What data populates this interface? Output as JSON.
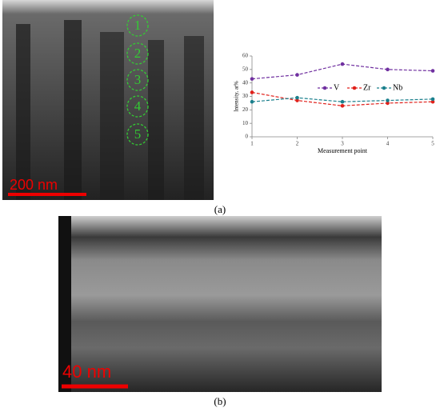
{
  "panel_a": {
    "markers": [
      "1",
      "2",
      "3",
      "4",
      "5"
    ],
    "scale_bar": "200 nm",
    "caption": "(a)"
  },
  "panel_b": {
    "scale_bar": "40 nm",
    "caption": "(b)"
  },
  "chart_data": {
    "type": "line",
    "x_label": "Measurement point",
    "y_label": "Intensity, at%",
    "x": [
      1,
      2,
      3,
      4,
      5
    ],
    "xlim": [
      1,
      5
    ],
    "xticks": [
      1,
      2,
      3,
      4,
      5
    ],
    "ylim": [
      0,
      60
    ],
    "yticks": [
      0,
      10,
      20,
      30,
      40,
      50,
      60
    ],
    "series": [
      {
        "name": "V",
        "color": "#7030a0",
        "values": [
          43,
          46,
          54,
          50,
          49
        ]
      },
      {
        "name": "Zr",
        "color": "#e0201a",
        "values": [
          33,
          27,
          23,
          25,
          26
        ]
      },
      {
        "name": "Nb",
        "color": "#1a7f8c",
        "values": [
          26,
          29,
          26,
          27,
          28
        ]
      }
    ]
  }
}
